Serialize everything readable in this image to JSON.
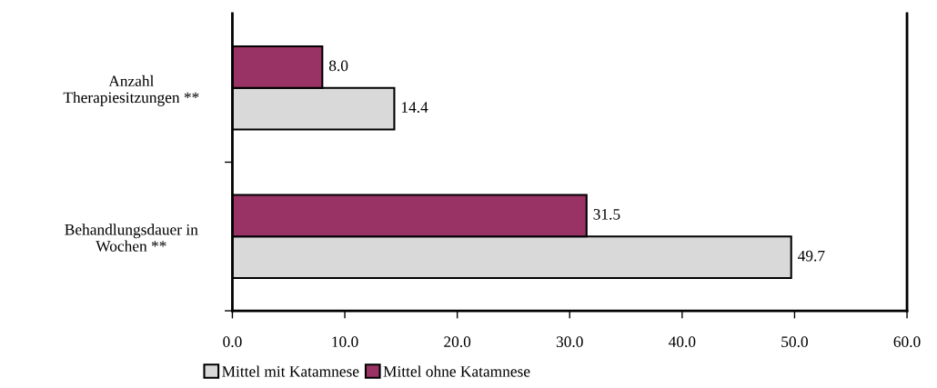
{
  "chart_data": {
    "type": "bar",
    "orientation": "horizontal",
    "categories": [
      "Anzahl\nTherapiesitzungen **",
      "Behandlungsdauer in\nWochen **"
    ],
    "series": [
      {
        "name": "Mittel mit Katamnese",
        "color": "#d9d9d9",
        "values": [
          14.4,
          49.7
        ],
        "value_labels": [
          "14.4",
          "49.7"
        ]
      },
      {
        "name": "Mittel ohne Katamnese",
        "color": "#993366",
        "values": [
          8.0,
          31.5
        ],
        "value_labels": [
          "8.0",
          "31.5"
        ]
      }
    ],
    "xlim": [
      0,
      60
    ],
    "xticks": [
      {
        "value": 0,
        "label": "0.0"
      },
      {
        "value": 10,
        "label": "10.0"
      },
      {
        "value": 20,
        "label": "20.0"
      },
      {
        "value": 30,
        "label": "30.0"
      },
      {
        "value": 40,
        "label": "40.0"
      },
      {
        "value": 50,
        "label": "50.0"
      },
      {
        "value": 60,
        "label": "60.0"
      }
    ],
    "grid": false,
    "legend": "bottom"
  }
}
